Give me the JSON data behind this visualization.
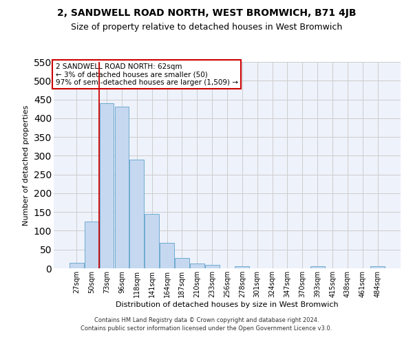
{
  "title": "2, SANDWELL ROAD NORTH, WEST BROMWICH, B71 4JB",
  "subtitle": "Size of property relative to detached houses in West Bromwich",
  "xlabel": "Distribution of detached houses by size in West Bromwich",
  "ylabel": "Number of detached properties",
  "footer1": "Contains HM Land Registry data © Crown copyright and database right 2024.",
  "footer2": "Contains public sector information licensed under the Open Government Licence v3.0.",
  "annotation_line1": "2 SANDWELL ROAD NORTH: 62sqm",
  "annotation_line2": "← 3% of detached houses are smaller (50)",
  "annotation_line3": "97% of semi-detached houses are larger (1,509) →",
  "bar_labels": [
    "27sqm",
    "50sqm",
    "73sqm",
    "96sqm",
    "118sqm",
    "141sqm",
    "164sqm",
    "187sqm",
    "210sqm",
    "233sqm",
    "256sqm",
    "278sqm",
    "301sqm",
    "324sqm",
    "347sqm",
    "370sqm",
    "393sqm",
    "415sqm",
    "438sqm",
    "461sqm",
    "484sqm"
  ],
  "bar_values": [
    14,
    125,
    440,
    430,
    290,
    145,
    67,
    27,
    12,
    9,
    0,
    5,
    0,
    0,
    0,
    0,
    5,
    0,
    0,
    0,
    6
  ],
  "bar_color": "#c5d8f0",
  "bar_edge_color": "#6fabd0",
  "red_line_x": 1.5,
  "ylim": [
    0,
    550
  ],
  "yticks": [
    0,
    50,
    100,
    150,
    200,
    250,
    300,
    350,
    400,
    450,
    500,
    550
  ],
  "grid_color": "#cccccc",
  "bg_color": "#eef2fb",
  "fig_bg_color": "#ffffff",
  "title_fontsize": 10,
  "subtitle_fontsize": 9,
  "annotation_box_color": "#ffffff",
  "annotation_box_edge_color": "#cc0000",
  "property_line_color": "#cc0000",
  "ylabel_fontsize": 8,
  "xlabel_fontsize": 8,
  "tick_fontsize": 7,
  "footer_fontsize": 6,
  "annotation_fontsize": 7.5
}
